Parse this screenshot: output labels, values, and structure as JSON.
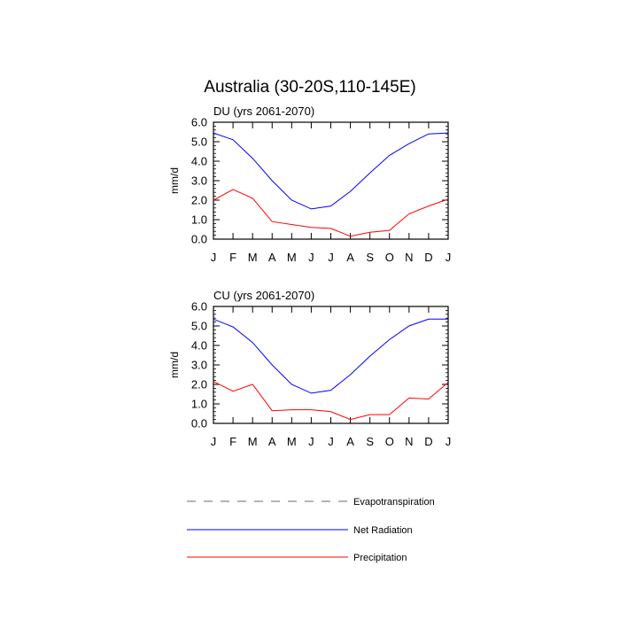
{
  "figure": {
    "title": "Australia (30-20S,110-145E)"
  },
  "chart_data": [
    {
      "type": "line",
      "subtitle": "DU (yrs 2061-2070)",
      "ylabel": "mm/d",
      "xlabel": "",
      "categories": [
        "J",
        "F",
        "M",
        "A",
        "M",
        "J",
        "J",
        "A",
        "S",
        "O",
        "N",
        "D",
        "J"
      ],
      "ylim": [
        0,
        6
      ],
      "yticks": [
        "0.0",
        "1.0",
        "2.0",
        "3.0",
        "4.0",
        "5.0",
        "6.0"
      ],
      "grid": false,
      "series": [
        {
          "name": "Net Radiation",
          "color": "#0000ff",
          "values": [
            5.45,
            5.1,
            4.15,
            3.0,
            2.0,
            1.55,
            1.7,
            2.45,
            3.4,
            4.3,
            4.9,
            5.4,
            5.45
          ]
        },
        {
          "name": "Precipitation",
          "color": "#ff0000",
          "values": [
            2.0,
            2.55,
            2.1,
            0.9,
            0.75,
            0.6,
            0.55,
            0.15,
            0.35,
            0.45,
            1.3,
            1.7,
            2.05
          ]
        }
      ]
    },
    {
      "type": "line",
      "subtitle": "CU (yrs 2061-2070)",
      "ylabel": "mm/d",
      "xlabel": "",
      "categories": [
        "J",
        "F",
        "M",
        "A",
        "M",
        "J",
        "J",
        "A",
        "S",
        "O",
        "N",
        "D",
        "J"
      ],
      "ylim": [
        0,
        6
      ],
      "yticks": [
        "0.0",
        "1.0",
        "2.0",
        "3.0",
        "4.0",
        "5.0",
        "6.0"
      ],
      "grid": false,
      "series": [
        {
          "name": "Net Radiation",
          "color": "#0000ff",
          "values": [
            5.35,
            4.95,
            4.15,
            3.0,
            2.0,
            1.55,
            1.7,
            2.5,
            3.45,
            4.3,
            5.0,
            5.35,
            5.35
          ]
        },
        {
          "name": "Precipitation",
          "color": "#ff0000",
          "values": [
            2.15,
            1.65,
            2.0,
            0.65,
            0.7,
            0.7,
            0.6,
            0.2,
            0.45,
            0.45,
            1.3,
            1.25,
            2.1
          ]
        }
      ]
    }
  ],
  "legend": {
    "placement": "bottom",
    "items": [
      {
        "label": "Evapotranspiration",
        "color": "#888888",
        "style": "dashed"
      },
      {
        "label": "Net Radiation",
        "color": "#0000ff",
        "style": "solid"
      },
      {
        "label": "Precipitation",
        "color": "#ff0000",
        "style": "solid"
      }
    ]
  }
}
